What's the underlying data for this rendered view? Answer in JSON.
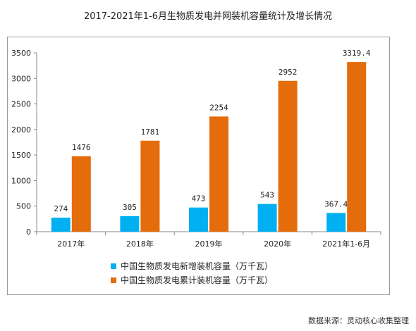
{
  "title": "2017-2021年1-6月生物质发电并网装机容量统计及增长情况",
  "source": "数据来源：灵动核心收集整理",
  "colors": {
    "new": "#00b0f0",
    "cumulative": "#e46c0a",
    "axis": "#888888"
  },
  "chart_data": {
    "type": "bar",
    "title": "2017-2021年1-6月生物质发电并网装机容量统计及增长情况",
    "categories": [
      "2017年",
      "2018年",
      "2019年",
      "2020年",
      "2021年1-6月"
    ],
    "series": [
      {
        "name": "中国生物质发电新增装机容量（万千瓦）",
        "values": [
          274,
          305,
          473,
          543,
          367.4
        ],
        "labels": [
          "274",
          "305",
          "473",
          "543",
          "367.4"
        ]
      },
      {
        "name": "中国生物质发电累计装机容量（万千瓦）",
        "values": [
          1476,
          1781,
          2254,
          2952,
          3319.4
        ],
        "labels": [
          "1476",
          "1781",
          "2254",
          "2952",
          "3319.4"
        ]
      }
    ],
    "yticks": [
      "0",
      "500",
      "1000",
      "1500",
      "2000",
      "2500",
      "3000",
      "3500"
    ],
    "ylim": [
      0,
      3500
    ],
    "grid": false,
    "legend": "bottom"
  }
}
